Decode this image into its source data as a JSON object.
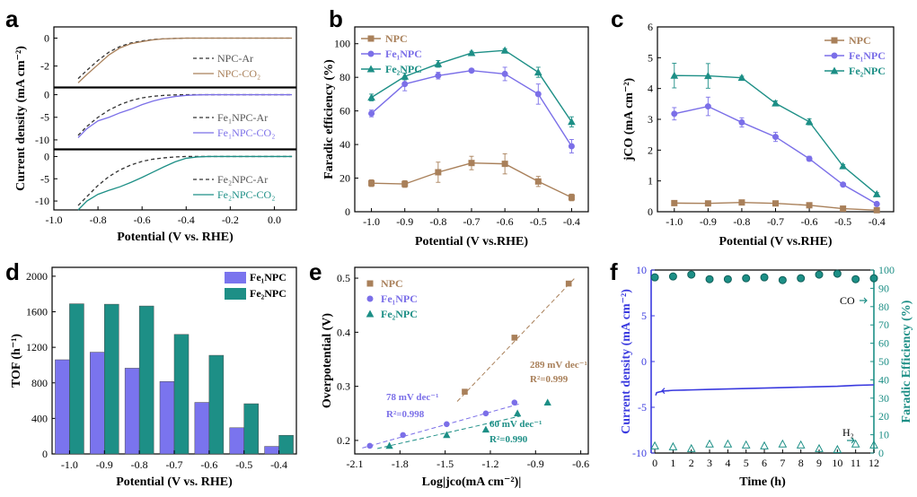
{
  "panel_labels": [
    "a",
    "b",
    "c",
    "d",
    "e",
    "f"
  ],
  "chart_data": [
    {
      "id": "a",
      "type": "line",
      "xlabel": "Potential (V vs. RHE)",
      "ylabel": "Current density (mA cm⁻²)",
      "xlim": [
        -1.0,
        0.1
      ],
      "xticks": [
        "-1.0",
        "-0.8",
        "-0.6",
        "-0.4",
        "-0.2",
        "0.0"
      ],
      "subplots": [
        {
          "ylim": [
            -3.5,
            0.8
          ],
          "yticks": [
            "0",
            "-2"
          ],
          "series": [
            {
              "name": "NPC-Ar",
              "style": "dashed",
              "color": "#333333",
              "x": [
                -0.89,
                -0.85,
                -0.8,
                -0.75,
                -0.7,
                -0.65,
                -0.6,
                -0.55,
                -0.5,
                -0.4,
                -0.2,
                0.08
              ],
              "y": [
                -2.9,
                -2.3,
                -1.6,
                -1.0,
                -0.6,
                -0.35,
                -0.2,
                -0.1,
                -0.05,
                0,
                0,
                0
              ]
            },
            {
              "name": "NPC-CO₂",
              "style": "solid",
              "color": "#a9805a",
              "x": [
                -0.89,
                -0.85,
                -0.8,
                -0.75,
                -0.7,
                -0.65,
                -0.6,
                -0.55,
                -0.5,
                -0.4,
                -0.2,
                0.08
              ],
              "y": [
                -3.2,
                -2.6,
                -1.9,
                -1.2,
                -0.7,
                -0.4,
                -0.25,
                -0.12,
                -0.05,
                0,
                0,
                0
              ]
            }
          ]
        },
        {
          "ylim": [
            -12,
            1.5
          ],
          "yticks": [
            "0",
            "-5",
            "-10"
          ],
          "series": [
            {
              "name": "Fe₁NPC-Ar",
              "style": "dashed",
              "color": "#333333",
              "x": [
                -0.89,
                -0.85,
                -0.8,
                -0.75,
                -0.7,
                -0.65,
                -0.6,
                -0.55,
                -0.5,
                -0.45,
                -0.4,
                -0.3,
                -0.2,
                0.08
              ],
              "y": [
                -9.0,
                -7.0,
                -5.0,
                -3.4,
                -2.2,
                -1.3,
                -0.7,
                -0.35,
                -0.15,
                -0.05,
                0,
                0,
                0,
                0
              ]
            },
            {
              "name": "Fe₁NPC-CO₂",
              "style": "solid",
              "color": "#7b6fe8",
              "x": [
                -0.89,
                -0.85,
                -0.8,
                -0.75,
                -0.7,
                -0.65,
                -0.6,
                -0.55,
                -0.5,
                -0.45,
                -0.4,
                -0.35,
                -0.3,
                -0.2,
                0.08
              ],
              "y": [
                -9.5,
                -7.5,
                -5.8,
                -5.0,
                -4.0,
                -3.2,
                -2.2,
                -1.4,
                -0.8,
                -0.4,
                -0.15,
                -0.05,
                0,
                0,
                0
              ]
            }
          ]
        },
        {
          "ylim": [
            -12,
            1.5
          ],
          "yticks": [
            "0",
            "-5",
            "-10"
          ],
          "series": [
            {
              "name": "Fe₂NPC-Ar",
              "style": "dashed",
              "color": "#333333",
              "x": [
                -0.89,
                -0.85,
                -0.8,
                -0.75,
                -0.7,
                -0.65,
                -0.6,
                -0.55,
                -0.5,
                -0.45,
                -0.4,
                -0.3,
                -0.2,
                0.08
              ],
              "y": [
                -11.0,
                -9.0,
                -6.5,
                -4.5,
                -3.0,
                -1.9,
                -1.1,
                -0.6,
                -0.3,
                -0.1,
                0,
                0,
                0,
                0
              ]
            },
            {
              "name": "Fe₂NPC-CO₂",
              "style": "solid",
              "color": "#1d8f86",
              "x": [
                -0.89,
                -0.85,
                -0.8,
                -0.75,
                -0.7,
                -0.65,
                -0.6,
                -0.55,
                -0.5,
                -0.45,
                -0.4,
                -0.35,
                -0.3,
                -0.2,
                0.08
              ],
              "y": [
                -12.0,
                -10.0,
                -8.5,
                -7.6,
                -6.8,
                -5.8,
                -4.7,
                -3.5,
                -2.3,
                -1.2,
                -0.4,
                -0.1,
                0,
                0,
                0
              ]
            }
          ]
        }
      ]
    },
    {
      "id": "b",
      "type": "line",
      "xlabel": "Potential (V vs.RHE)",
      "ylabel": "Faradic efficiency (%)",
      "x": [
        -1.0,
        -0.9,
        -0.8,
        -0.7,
        -0.6,
        -0.5,
        -0.4
      ],
      "xlim": [
        -1.05,
        -0.35
      ],
      "ylim": [
        0,
        110
      ],
      "xticks": [
        "-1.0",
        "-0.9",
        "-0.8",
        "-0.7",
        "-0.6",
        "-0.5",
        "-0.4"
      ],
      "yticks": [
        "0",
        "20",
        "40",
        "60",
        "80",
        "100"
      ],
      "series": [
        {
          "name": "NPC",
          "color": "#a9805a",
          "marker": "square",
          "values": [
            17,
            16.5,
            23.5,
            29,
            28.5,
            18,
            8.5
          ],
          "err": [
            2,
            2,
            6,
            4,
            6,
            3,
            2
          ]
        },
        {
          "name": "Fe₁NPC",
          "color": "#7b6fe8",
          "marker": "circle",
          "values": [
            58.5,
            76,
            81,
            84,
            82,
            70,
            39
          ],
          "err": [
            2,
            4,
            2,
            1,
            4,
            6,
            4
          ]
        },
        {
          "name": "Fe₂NPC",
          "color": "#1d8f86",
          "marker": "triangle",
          "values": [
            68,
            80.5,
            88,
            94.5,
            96,
            83,
            53.5
          ],
          "err": [
            2,
            2,
            2,
            1,
            1,
            3,
            3
          ]
        }
      ]
    },
    {
      "id": "c",
      "type": "line",
      "xlabel": "Potential (V vs.RHE)",
      "ylabel": "jСО (mA cm⁻²)",
      "x": [
        -1.0,
        -0.9,
        -0.8,
        -0.7,
        -0.6,
        -0.5,
        -0.4
      ],
      "xlim": [
        -1.05,
        -0.35
      ],
      "ylim": [
        0,
        6
      ],
      "xticks": [
        "-1.0",
        "-0.9",
        "-0.8",
        "-0.7",
        "-0.6",
        "-0.5",
        "-0.4"
      ],
      "yticks": [
        "0",
        "1",
        "2",
        "3",
        "4",
        "5",
        "6"
      ],
      "series": [
        {
          "name": "NPC",
          "color": "#a9805a",
          "marker": "square",
          "values": [
            0.28,
            0.27,
            0.3,
            0.27,
            0.21,
            0.1,
            0.05
          ],
          "err": [
            0.03,
            0.03,
            0.03,
            0.03,
            0.03,
            0.02,
            0.02
          ]
        },
        {
          "name": "Fe₁NPC",
          "color": "#7b6fe8",
          "marker": "circle",
          "values": [
            3.18,
            3.42,
            2.9,
            2.43,
            1.72,
            0.88,
            0.25
          ],
          "err": [
            0.2,
            0.3,
            0.15,
            0.15,
            0.08,
            0.05,
            0.05
          ]
        },
        {
          "name": "Fe₂NPC",
          "color": "#1d8f86",
          "marker": "triangle",
          "values": [
            4.42,
            4.41,
            4.35,
            3.52,
            2.92,
            1.48,
            0.57
          ],
          "err": [
            0.4,
            0.4,
            0.05,
            0.08,
            0.1,
            0.05,
            0.05
          ]
        }
      ]
    },
    {
      "id": "d",
      "type": "bar",
      "xlabel": "Potential (V vs. RHE)",
      "ylabel": "TOF (h⁻¹)",
      "categories": [
        "-1.0",
        "-0.9",
        "-0.8",
        "-0.7",
        "-0.6",
        "-0.5",
        "-0.4"
      ],
      "ylim": [
        0,
        2100
      ],
      "yticks": [
        "0",
        "400",
        "800",
        "1200",
        "1600",
        "2000"
      ],
      "series": [
        {
          "name": "Fe₁NPC",
          "color": "#7a74ee",
          "values": [
            1060,
            1145,
            965,
            815,
            580,
            295,
            85
          ]
        },
        {
          "name": "Fe₂NPC",
          "color": "#1d8f86",
          "values": [
            1690,
            1685,
            1665,
            1345,
            1110,
            565,
            210
          ]
        }
      ]
    },
    {
      "id": "e",
      "type": "scatter",
      "xlabel": "Log|jсо(mA cm⁻²)|",
      "ylabel": "Overpotential (V)",
      "xlim": [
        -2.1,
        -0.55
      ],
      "ylim": [
        0.175,
        0.52
      ],
      "xticks": [
        "-2.1",
        "-1.8",
        "-1.5",
        "-1.2",
        "-0.9",
        "-0.6"
      ],
      "yticks": [
        "0.2",
        "0.3",
        "0.4",
        "0.5"
      ],
      "series": [
        {
          "name": "NPC",
          "color": "#a9805a",
          "marker": "square",
          "x": [
            -1.37,
            -1.04,
            -0.68
          ],
          "y": [
            0.29,
            0.39,
            0.49
          ],
          "fit": [
            [
              -1.42,
              0.272
            ],
            [
              -0.64,
              0.5
            ]
          ]
        },
        {
          "name": "Fe₁NPC",
          "color": "#7b6fe8",
          "marker": "circle",
          "x": [
            -2.0,
            -1.78,
            -1.49,
            -1.23,
            -1.04
          ],
          "y": [
            0.19,
            0.21,
            0.23,
            0.25,
            0.27
          ],
          "fit": [
            [
              -2.05,
              0.186
            ],
            [
              -1.0,
              0.268
            ]
          ]
        },
        {
          "name": "Fe₂NPC",
          "color": "#1d8f86",
          "marker": "triangle",
          "x": [
            -1.87,
            -1.49,
            -1.23,
            -1.02,
            -0.82
          ],
          "y": [
            0.19,
            0.21,
            0.22,
            0.25,
            0.27
          ],
          "fit": [
            [
              -1.95,
              0.185
            ],
            [
              -1.0,
              0.245
            ]
          ]
        }
      ],
      "annotations": [
        {
          "text": "289 mV dec⁻¹",
          "color": "#a9805a"
        },
        {
          "text": "R²=0.999",
          "color": "#a9805a"
        },
        {
          "text": "78 mV dec⁻¹",
          "color": "#7b6fe8"
        },
        {
          "text": "R²=0.998",
          "color": "#7b6fe8"
        },
        {
          "text": "60 mV dec⁻¹",
          "color": "#1d8f86"
        },
        {
          "text": "R²=0.990",
          "color": "#1d8f86"
        }
      ]
    },
    {
      "id": "f",
      "type": "line",
      "xlabel": "Time (h)",
      "ylabel_left": "Current density (mA cm⁻²)",
      "ylabel_right": "Faradic Efficiency (%)",
      "xlim": [
        -0.2,
        12
      ],
      "ylim_left": [
        -10,
        10
      ],
      "ylim_right": [
        0,
        100
      ],
      "xticks": [
        "0",
        "1",
        "2",
        "3",
        "4",
        "5",
        "6",
        "7",
        "8",
        "9",
        "10",
        "11",
        "12"
      ],
      "yticks_left": [
        "-10",
        "-5",
        "0",
        "5",
        "10"
      ],
      "yticks_right": [
        "0",
        "10",
        "20",
        "30",
        "40",
        "50",
        "60",
        "70",
        "80",
        "90",
        "100"
      ],
      "current": {
        "color": "#3a3adf",
        "x": [
          0.05,
          0.1,
          0.3,
          0.6,
          1,
          2,
          3,
          4,
          5,
          6,
          7,
          8,
          9,
          10,
          11,
          12
        ],
        "y": [
          -3.7,
          -3.4,
          -3.3,
          -3.2,
          -3.15,
          -3.1,
          -3.05,
          -3.0,
          -2.95,
          -2.9,
          -2.85,
          -2.8,
          -2.75,
          -2.7,
          -2.6,
          -2.55
        ]
      },
      "fe_co": {
        "name": "CO",
        "color": "#1d8f86",
        "x": [
          0,
          1,
          2,
          3,
          4,
          5,
          6,
          7,
          8,
          9,
          10,
          11,
          12
        ],
        "y": [
          96,
          96.5,
          97.5,
          95,
          95,
          95.5,
          96,
          94.5,
          95.5,
          97.5,
          98,
          95,
          95.5
        ]
      },
      "fe_h2": {
        "name": "H₂",
        "color": "#1d8f86",
        "x": [
          0,
          1,
          2,
          3,
          4,
          5,
          6,
          7,
          8,
          9,
          10,
          11,
          12
        ],
        "y": [
          4,
          3.5,
          2.5,
          5,
          5,
          4.5,
          4,
          5,
          4.5,
          2.5,
          2,
          5,
          4.5
        ]
      }
    }
  ]
}
